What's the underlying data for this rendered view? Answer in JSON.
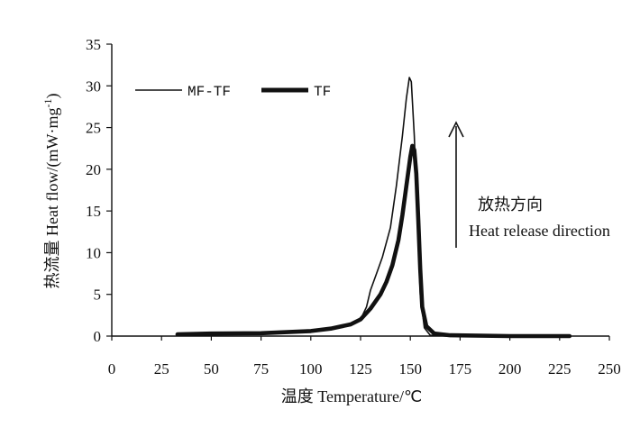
{
  "chart_data": {
    "type": "line",
    "xlabel": "温度 Temperature/℃",
    "ylabel": "热流量 Heat flow/(mW·mg",
    "ylabel_sup": "-1",
    "ylabel_close": ")",
    "xlim": [
      0,
      250
    ],
    "ylim": [
      0,
      35
    ],
    "xticks": [
      0,
      25,
      50,
      75,
      100,
      125,
      150,
      175,
      200,
      225,
      250
    ],
    "yticks": [
      0,
      5,
      10,
      15,
      20,
      25,
      30,
      35
    ],
    "grid": false,
    "legend_position": "top-left",
    "annotation_cn": "放热方向",
    "annotation_en": "Heat release direction",
    "series": [
      {
        "name": "MF-TF",
        "style": "thin",
        "x": [
          33,
          50,
          75,
          100,
          110,
          120,
          125,
          128,
          130,
          133,
          136,
          140,
          143,
          146,
          148,
          149.5,
          150.5,
          152,
          153.5,
          155,
          157,
          160,
          170,
          200,
          230
        ],
        "y": [
          0.1,
          0.15,
          0.3,
          0.6,
          0.9,
          1.4,
          2.0,
          3.5,
          5.5,
          7.5,
          9.5,
          13.0,
          18.0,
          24.0,
          28.5,
          31.0,
          30.5,
          24.0,
          14.0,
          5.0,
          1.0,
          0.1,
          0.0,
          0.0,
          0.0
        ]
      },
      {
        "name": "TF",
        "style": "thick",
        "x": [
          33,
          50,
          75,
          100,
          110,
          120,
          125,
          130,
          135,
          138,
          141,
          144,
          146,
          148,
          150,
          151,
          152,
          153,
          154,
          155,
          156,
          158,
          162,
          170,
          200,
          230
        ],
        "y": [
          0.2,
          0.3,
          0.35,
          0.6,
          0.9,
          1.4,
          2.0,
          3.3,
          5.0,
          6.5,
          8.5,
          11.5,
          14.5,
          18.0,
          21.5,
          22.8,
          22.3,
          19.5,
          14.0,
          8.0,
          3.5,
          1.2,
          0.3,
          0.1,
          0.0,
          0.0
        ]
      }
    ]
  }
}
